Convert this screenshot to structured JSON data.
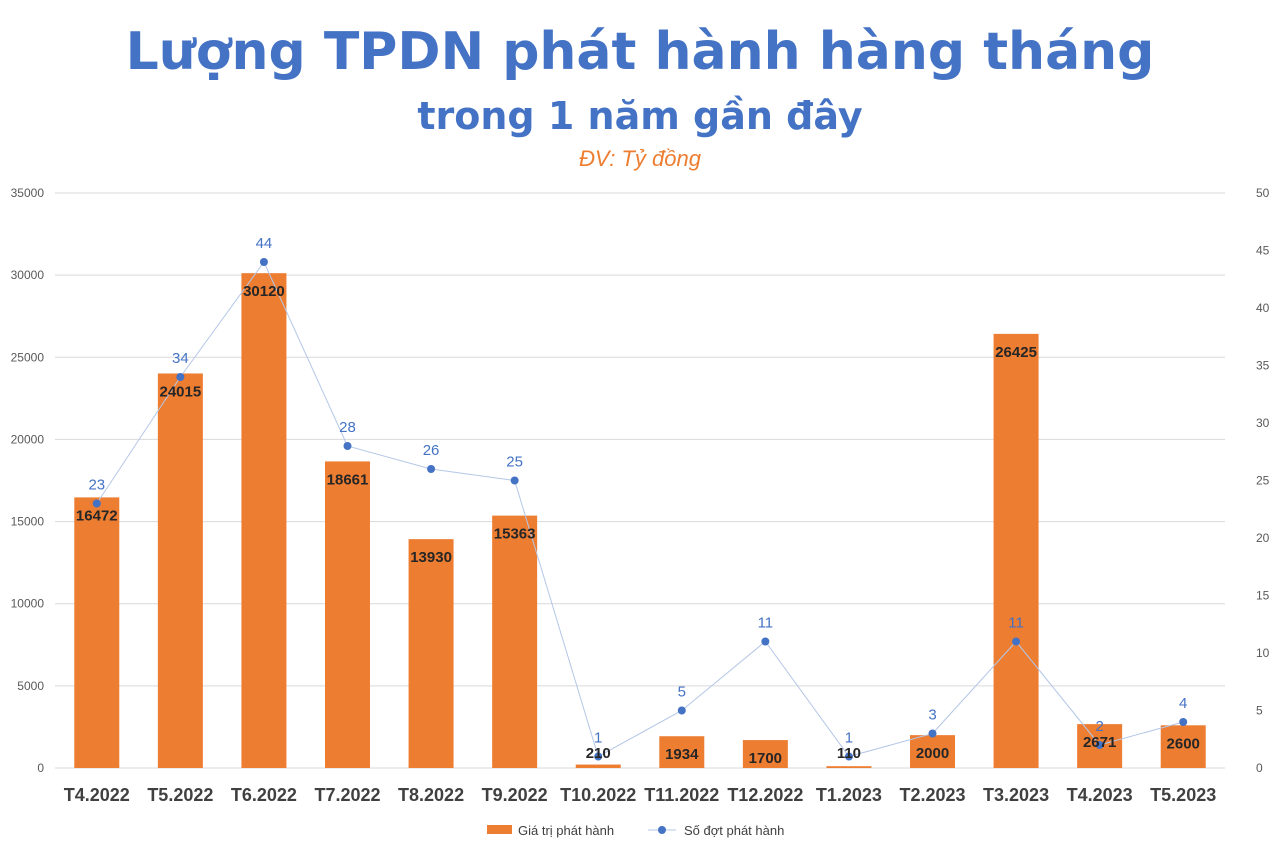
{
  "chart_data": {
    "type": "bar",
    "title": "Lượng TPDN phát hành hàng tháng",
    "subtitle": "trong 1 năm gần đây",
    "unit_note": "ĐV: Tỷ đồng",
    "categories": [
      "T4.2022",
      "T5.2022",
      "T6.2022",
      "T7.2022",
      "T8.2022",
      "T9.2022",
      "T10.2022",
      "T11.2022",
      "T12.2022",
      "T1.2023",
      "T2.2023",
      "T3.2023",
      "T4.2023",
      "T5.2023"
    ],
    "series": [
      {
        "name": "Giá trị phát hành",
        "type": "bar",
        "axis": "left",
        "color": "#ed7d31",
        "values": [
          16472,
          24015,
          30120,
          18661,
          13930,
          15363,
          210,
          1934,
          1700,
          110,
          2000,
          26425,
          2671,
          2600
        ]
      },
      {
        "name": "Số đợt phát hành",
        "type": "line",
        "axis": "right",
        "color": "#4472c4",
        "values": [
          23,
          34,
          44,
          28,
          26,
          25,
          1,
          5,
          11,
          1,
          3,
          11,
          2,
          4
        ]
      }
    ],
    "ylim_left": [
      0,
      35000
    ],
    "yticks_left": [
      0,
      5000,
      10000,
      15000,
      20000,
      25000,
      30000,
      35000
    ],
    "ylim_right": [
      0,
      50
    ],
    "yticks_right": [
      0,
      5,
      10,
      15,
      20,
      25,
      30,
      35,
      40,
      45,
      50
    ],
    "grid": true,
    "legend_position": "bottom"
  }
}
